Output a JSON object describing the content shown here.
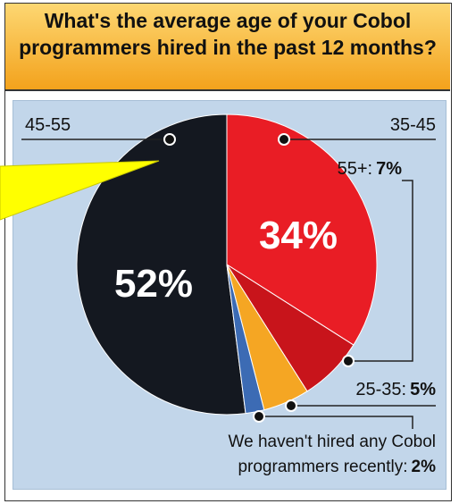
{
  "title": "What's the average age of your Cobol programmers hired in the past 12 months?",
  "chart_data": {
    "type": "pie",
    "series": [
      {
        "name": "45-55",
        "value": 52,
        "color": "#141820"
      },
      {
        "name": "35-45",
        "value": 34,
        "color": "#e91d25"
      },
      {
        "name": "55+",
        "value": 7,
        "color": "#c8141b"
      },
      {
        "name": "25-35",
        "value": 5,
        "color": "#f5a623"
      },
      {
        "name": "We haven't hired any Cobol programmers recently",
        "value": 2,
        "color": "#3c6bb4"
      }
    ],
    "labels": {
      "l4555": "45-55",
      "l3545": "35-45",
      "l55": "55+:",
      "v55": "7%",
      "l2535": "25-35:",
      "v2535": "5%",
      "lnone1": "We haven't hired any Cobol",
      "lnone2": "programmers recently:",
      "vnone": "2%",
      "big52": "52%",
      "big34": "34%"
    },
    "annotation_color": "#ffff00"
  }
}
